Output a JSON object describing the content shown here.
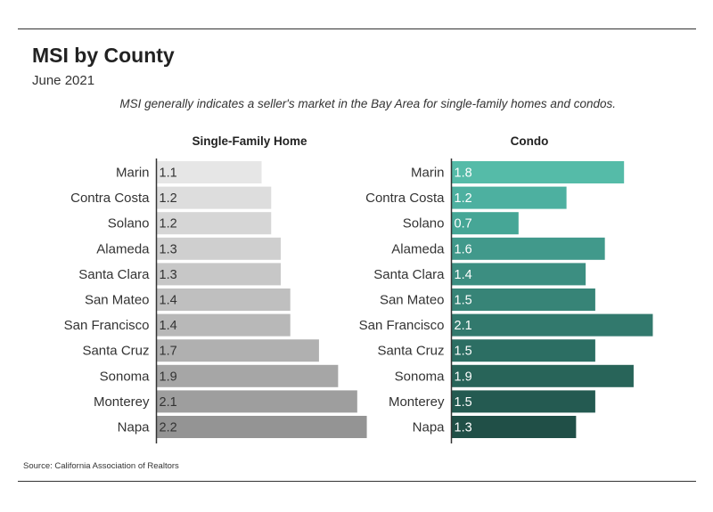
{
  "header": {
    "title": "MSI by County",
    "subtitle": "June 2021",
    "note": "MSI generally indicates a seller's market in the Bay Area for single-family homes and condos.",
    "source": "Source:  California Association of Realtors"
  },
  "chart_data": [
    {
      "type": "bar",
      "orientation": "horizontal",
      "title": "Single-Family Home",
      "categories": [
        "Marin",
        "Contra Costa",
        "Solano",
        "Alameda",
        "Santa Clara",
        "San Mateo",
        "San Francisco",
        "Santa Cruz",
        "Sonoma",
        "Monterey",
        "Napa"
      ],
      "values": [
        1.1,
        1.2,
        1.2,
        1.3,
        1.3,
        1.4,
        1.4,
        1.7,
        1.9,
        2.1,
        2.2
      ],
      "data_labels": [
        "1.1",
        "1.2",
        "1.2",
        "1.3",
        "1.3",
        "1.4",
        "1.4",
        "1.7",
        "1.9",
        "2.1",
        "2.2"
      ],
      "colors": [
        "#e6e6e6",
        "#dddddd",
        "#d6d6d6",
        "#cfcfcf",
        "#c7c7c7",
        "#bfbfbf",
        "#b8b8b8",
        "#b0b0b0",
        "#a6a6a6",
        "#9e9e9e",
        "#949494"
      ],
      "xlim": [
        0,
        2.2
      ],
      "grid": false
    },
    {
      "type": "bar",
      "orientation": "horizontal",
      "title": "Condo",
      "categories": [
        "Marin",
        "Contra Costa",
        "Solano",
        "Alameda",
        "Santa Clara",
        "San Mateo",
        "San Francisco",
        "Santa Cruz",
        "Sonoma",
        "Monterey",
        "Napa"
      ],
      "values": [
        1.8,
        1.2,
        0.7,
        1.6,
        1.4,
        1.5,
        2.1,
        1.5,
        1.9,
        1.5,
        1.3
      ],
      "data_labels": [
        "1.8",
        "1.2",
        "0.7",
        "1.6",
        "1.4",
        "1.5",
        "2.1",
        "1.5",
        "1.9",
        "1.5",
        "1.3"
      ],
      "colors": [
        "#55bba8",
        "#4db0a0",
        "#46a696",
        "#41998b",
        "#3c8e81",
        "#378477",
        "#32796d",
        "#2c6e63",
        "#286459",
        "#245a51",
        "#204f47"
      ],
      "xlim": [
        0,
        2.1
      ],
      "grid": false
    }
  ]
}
